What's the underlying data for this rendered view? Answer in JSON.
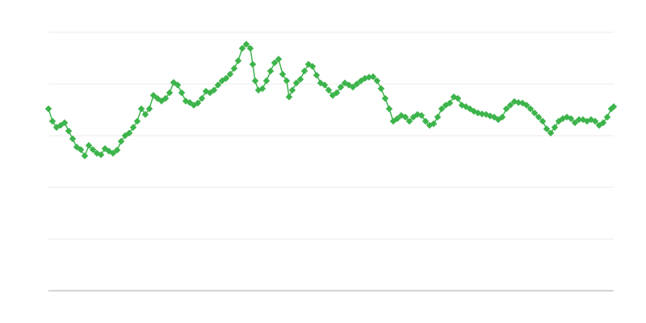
{
  "chart_data": {
    "type": "line",
    "color": "#3db44b",
    "grid": true,
    "xlim": [
      0,
      700
    ],
    "ylim": [
      0,
      5
    ],
    "yticks": [
      0,
      1,
      2,
      3,
      4,
      5
    ],
    "x": [
      0,
      5,
      10,
      15,
      20,
      25,
      30,
      35,
      40,
      45,
      50,
      55,
      60,
      65,
      70,
      75,
      80,
      85,
      90,
      95,
      100,
      105,
      110,
      115,
      120,
      125,
      130,
      135,
      140,
      145,
      150,
      155,
      160,
      165,
      170,
      175,
      180,
      185,
      190,
      195,
      200,
      205,
      210,
      215,
      220,
      225,
      230,
      235,
      240,
      245,
      250,
      253,
      256,
      260,
      265,
      270,
      275,
      280,
      285,
      290,
      295,
      298,
      302,
      307,
      312,
      317,
      322,
      327,
      332,
      337,
      342,
      347,
      352,
      357,
      362,
      367,
      372,
      377,
      382,
      387,
      392,
      397,
      402,
      407,
      412,
      417,
      422,
      427,
      432,
      437,
      442,
      447,
      452,
      457,
      462,
      467,
      472,
      477,
      482,
      487,
      492,
      497,
      502,
      507,
      512,
      517,
      522,
      527,
      532,
      537,
      542,
      547,
      552,
      557,
      562,
      567,
      572,
      577,
      582,
      587,
      592,
      597,
      602,
      607,
      612,
      617,
      622,
      627,
      632,
      637,
      642,
      647,
      652,
      657,
      662,
      667,
      672,
      677,
      682,
      687,
      692,
      697,
      700
    ],
    "values": [
      3.52,
      3.28,
      3.16,
      3.2,
      3.25,
      3.09,
      2.94,
      2.78,
      2.73,
      2.61,
      2.81,
      2.73,
      2.66,
      2.63,
      2.75,
      2.7,
      2.66,
      2.72,
      2.89,
      3,
      3.05,
      3.16,
      3.28,
      3.52,
      3.41,
      3.52,
      3.78,
      3.72,
      3.67,
      3.72,
      3.83,
      4.03,
      3.98,
      3.83,
      3.67,
      3.64,
      3.59,
      3.63,
      3.72,
      3.86,
      3.83,
      3.88,
      3.98,
      4.06,
      4.11,
      4.19,
      4.3,
      4.45,
      4.69,
      4.77,
      4.69,
      4.38,
      4.06,
      3.88,
      3.91,
      4.06,
      4.25,
      4.41,
      4.48,
      4.19,
      4.06,
      3.75,
      3.88,
      4.02,
      4.09,
      4.25,
      4.38,
      4.34,
      4.17,
      4.02,
      3.98,
      3.88,
      3.78,
      3.83,
      3.94,
      4.02,
      3.98,
      3.94,
      4,
      4.06,
      4.11,
      4.13,
      4.14,
      4.06,
      3.91,
      3.72,
      3.52,
      3.28,
      3.33,
      3.39,
      3.36,
      3.28,
      3.36,
      3.41,
      3.39,
      3.28,
      3.2,
      3.23,
      3.36,
      3.52,
      3.59,
      3.63,
      3.75,
      3.72,
      3.59,
      3.56,
      3.52,
      3.47,
      3.44,
      3.42,
      3.41,
      3.38,
      3.36,
      3.31,
      3.36,
      3.52,
      3.59,
      3.66,
      3.64,
      3.63,
      3.59,
      3.52,
      3.44,
      3.36,
      3.28,
      3.13,
      3.05,
      3.16,
      3.28,
      3.33,
      3.36,
      3.33,
      3.25,
      3.31,
      3.31,
      3.28,
      3.31,
      3.28,
      3.2,
      3.25,
      3.36,
      3.52,
      3.56
    ]
  }
}
